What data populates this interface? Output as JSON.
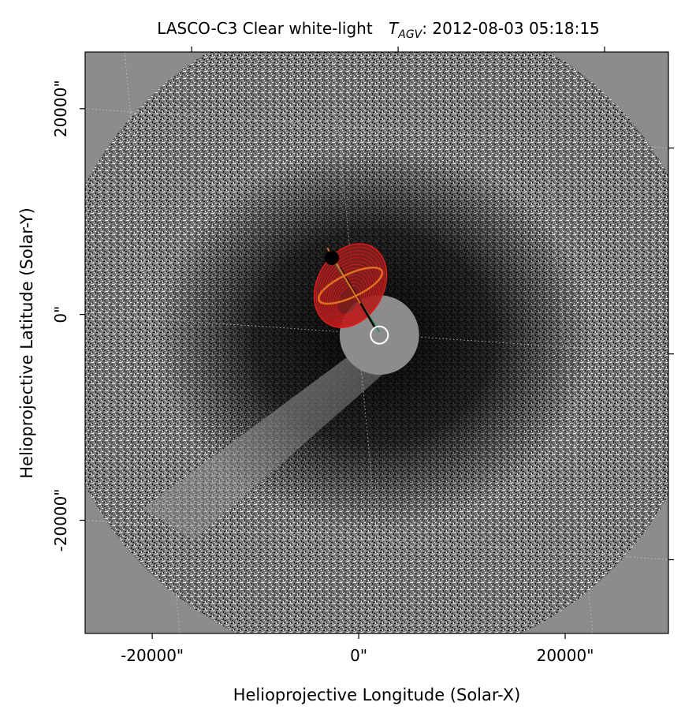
{
  "chart_data": {
    "type": "image",
    "title": {
      "instrument": "LASCO-C3 Clear white-light",
      "time_symbol": "T",
      "time_subscript": "AGV",
      "time_value": ": 2012-08-03 05:18:15"
    },
    "xlabel": "Helioprojective Longitude (Solar-X)",
    "ylabel": "Helioprojective Latitude (Solar-Y)",
    "xlim": [
      -26500,
      30000
    ],
    "ylim": [
      -31000,
      25500
    ],
    "x_ticks": [
      {
        "value": -20000,
        "label": "-20000\""
      },
      {
        "value": 0,
        "label": "0\""
      },
      {
        "value": 20000,
        "label": "20000\""
      }
    ],
    "y_ticks": [
      {
        "value": 20000,
        "label": "20000\""
      },
      {
        "value": 0,
        "label": "0\""
      },
      {
        "value": -20000,
        "label": "-20000\""
      }
    ],
    "image_background": "#8c8c8c",
    "occulter_center": [
      2000,
      -2000
    ],
    "occulter_radius": 3500,
    "field_radius": 32000,
    "sun_marker": {
      "x": 2000,
      "y": -2000,
      "color": "#ffffff"
    },
    "apex_marker": {
      "x": -2600,
      "y": 5500,
      "color": "#000000"
    },
    "gcs_model": {
      "shell_color": "#e31b1b",
      "inner_color": "#8b1e1e",
      "axis_color": "#e07020",
      "line_color": "#2e8b57",
      "center": [
        -800,
        2800
      ],
      "semi_major": 4300,
      "semi_minor": 3200,
      "tilt_deg": 30
    }
  }
}
